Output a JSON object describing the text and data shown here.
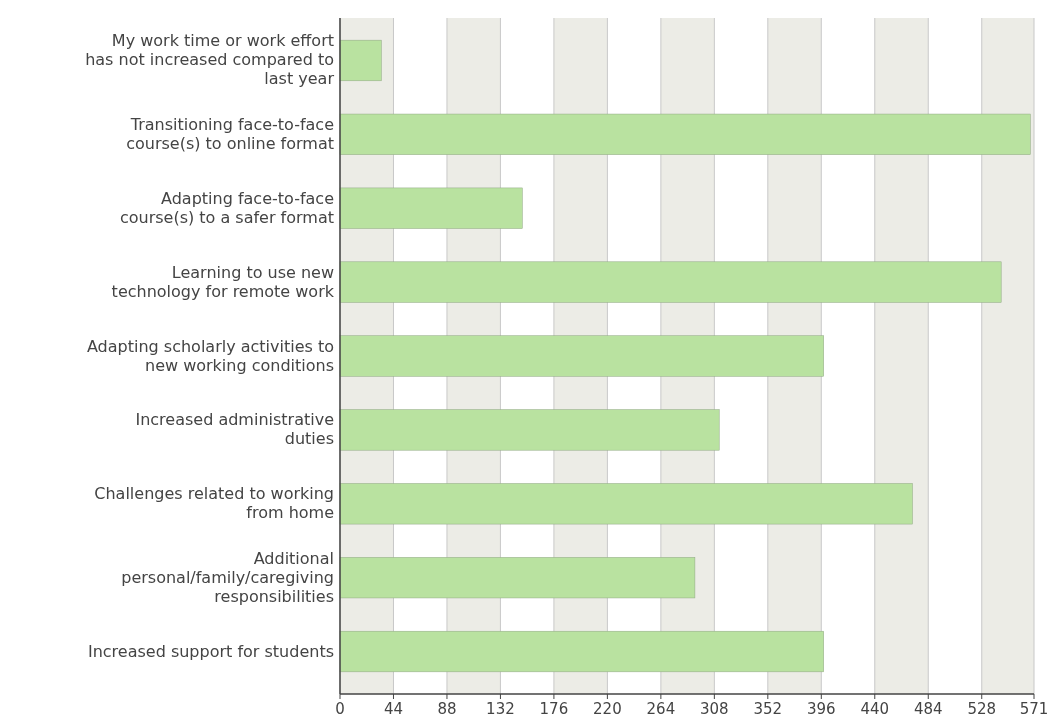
{
  "chart_data": {
    "type": "bar",
    "orientation": "horizontal",
    "categories": [
      "My work time or work effort has not increased compared to last year",
      "Transitioning face-to-face course(s) to online format",
      "Adapting face-to-face course(s) to a safer format",
      "Learning to use new technology for remote work",
      "Adapting scholarly activities to new working conditions",
      "Increased administrative duties",
      "Challenges related to working from home",
      "Additional personal/family/caregiving responsibilities",
      "Increased support for students"
    ],
    "values": [
      34,
      568,
      150,
      544,
      398,
      312,
      471,
      292,
      398
    ],
    "color": "#b9e2a0",
    "xlim": [
      0,
      571
    ],
    "xticks": [
      0,
      44,
      88,
      132,
      176,
      220,
      264,
      308,
      352,
      396,
      440,
      484,
      528,
      571
    ],
    "grid": "x"
  }
}
